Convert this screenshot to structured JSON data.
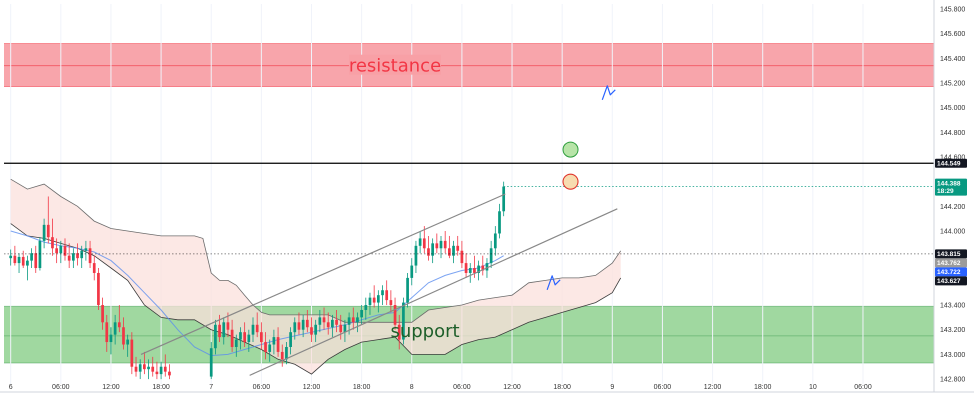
{
  "chart_data": {
    "type": "candlestick",
    "title": "",
    "yaxis": {
      "ticks": [
        "145.800",
        "145.600",
        "145.400",
        "145.200",
        "145.000",
        "144.800",
        "144.600",
        "144.400",
        "144.200",
        "144.000",
        "143.800",
        "143.600",
        "143.400",
        "143.200",
        "143.000",
        "142.800"
      ],
      "range": [
        142.76,
        145.84
      ]
    },
    "xaxis": {
      "labels": [
        {
          "t": 0,
          "text": "6"
        },
        {
          "t": 6,
          "text": "06:00"
        },
        {
          "t": 12,
          "text": "12:00"
        },
        {
          "t": 18,
          "text": "18:00"
        },
        {
          "t": 24,
          "text": "7"
        },
        {
          "t": 30,
          "text": "06:00"
        },
        {
          "t": 36,
          "text": "12:00"
        },
        {
          "t": 42,
          "text": "18:00"
        },
        {
          "t": 48,
          "text": "8"
        },
        {
          "t": 54,
          "text": "06:00"
        },
        {
          "t": 60,
          "text": "12:00"
        },
        {
          "t": 66,
          "text": "18:00"
        },
        {
          "t": 72,
          "text": "9"
        },
        {
          "t": 78,
          "text": "06:00"
        },
        {
          "t": 84,
          "text": "12:00"
        },
        {
          "t": 90,
          "text": "18:00"
        },
        {
          "t": 96,
          "text": "10"
        },
        {
          "t": 102,
          "text": "06:00"
        }
      ],
      "range": [
        -0.8,
        110.5
      ]
    },
    "zones": {
      "resistance": {
        "label": "resistance",
        "top": 145.52,
        "bottom": 145.17,
        "mid": 145.34
      },
      "support": {
        "label": "support",
        "top": 143.39,
        "bottom": 142.93,
        "mid": 143.15
      }
    },
    "levels": [
      {
        "value": 144.549,
        "tag": "144.549",
        "color": "#000000",
        "style": "solid"
      },
      {
        "value": 143.815,
        "tag": "143.815",
        "color": "#000000",
        "style": "dotted"
      }
    ],
    "price_tags": [
      {
        "value": 144.388,
        "text": "144.388",
        "sub": "18:29",
        "color": "#089981"
      },
      {
        "value": 143.762,
        "text": "143.762",
        "color": "#9b9b9b"
      },
      {
        "value": 143.722,
        "text": "143.722",
        "color": "#2962ff"
      },
      {
        "value": 143.627,
        "text": "143.627",
        "color": "#131722"
      }
    ],
    "candles": [
      [
        0.0,
        143.78,
        143.85,
        143.72,
        143.8
      ],
      [
        0.5,
        143.8,
        143.88,
        143.72,
        143.74
      ],
      [
        1.0,
        143.74,
        143.82,
        143.66,
        143.79
      ],
      [
        1.5,
        143.79,
        143.84,
        143.7,
        143.72
      ],
      [
        2.0,
        143.72,
        143.8,
        143.6,
        143.76
      ],
      [
        2.5,
        143.76,
        143.86,
        143.7,
        143.82
      ],
      [
        3.0,
        143.82,
        143.88,
        143.66,
        143.7
      ],
      [
        3.5,
        143.7,
        143.95,
        143.68,
        143.92
      ],
      [
        4.0,
        143.92,
        144.1,
        143.86,
        144.05
      ],
      [
        4.5,
        144.05,
        144.28,
        143.9,
        143.95
      ],
      [
        5.0,
        143.95,
        144.1,
        143.8,
        143.86
      ],
      [
        5.5,
        143.86,
        143.94,
        143.74,
        143.82
      ],
      [
        6.0,
        143.82,
        143.92,
        143.74,
        143.88
      ],
      [
        6.5,
        143.88,
        143.94,
        143.76,
        143.8
      ],
      [
        7.0,
        143.8,
        143.9,
        143.7,
        143.76
      ],
      [
        7.5,
        143.76,
        143.86,
        143.7,
        143.82
      ],
      [
        8.0,
        143.82,
        143.9,
        143.72,
        143.78
      ],
      [
        8.5,
        143.78,
        143.88,
        143.7,
        143.84
      ],
      [
        9.0,
        143.84,
        143.92,
        143.76,
        143.86
      ],
      [
        9.5,
        143.86,
        143.92,
        143.7,
        143.74
      ],
      [
        10.0,
        143.74,
        143.8,
        143.6,
        143.66
      ],
      [
        10.5,
        143.66,
        143.7,
        143.36,
        143.4
      ],
      [
        11.0,
        143.4,
        143.46,
        143.2,
        143.26
      ],
      [
        11.5,
        143.26,
        143.32,
        143.02,
        143.1
      ],
      [
        12.0,
        143.1,
        143.22,
        143.0,
        143.16
      ],
      [
        12.5,
        143.16,
        143.32,
        143.08,
        143.26
      ],
      [
        13.0,
        143.26,
        143.4,
        143.18,
        143.22
      ],
      [
        13.5,
        143.22,
        143.3,
        143.04,
        143.08
      ],
      [
        14.0,
        143.08,
        143.16,
        142.98,
        143.12
      ],
      [
        14.5,
        143.12,
        143.18,
        142.84,
        142.9
      ],
      [
        15.0,
        142.9,
        142.98,
        142.82,
        142.86
      ],
      [
        15.5,
        142.86,
        142.96,
        142.8,
        142.92
      ],
      [
        16.0,
        142.92,
        143.02,
        142.84,
        142.88
      ],
      [
        16.5,
        142.88,
        142.96,
        142.8,
        142.9
      ],
      [
        17.0,
        142.9,
        142.98,
        142.82,
        142.86
      ],
      [
        17.5,
        142.86,
        142.94,
        142.8,
        142.84
      ],
      [
        18.0,
        142.84,
        142.94,
        142.8,
        142.9
      ],
      [
        18.5,
        142.9,
        143.0,
        142.82,
        142.86
      ],
      [
        19.0,
        142.86,
        142.92,
        142.8,
        142.83
      ],
      [
        24.0,
        142.82,
        143.1,
        142.8,
        143.05
      ],
      [
        24.5,
        143.05,
        143.28,
        143.0,
        143.24
      ],
      [
        25.0,
        143.24,
        143.32,
        143.1,
        143.14
      ],
      [
        25.5,
        143.14,
        143.3,
        143.08,
        143.26
      ],
      [
        26.0,
        143.26,
        143.34,
        143.14,
        143.2
      ],
      [
        26.5,
        143.2,
        143.28,
        143.02,
        143.06
      ],
      [
        27.0,
        143.06,
        143.16,
        142.98,
        143.12
      ],
      [
        27.5,
        143.12,
        143.22,
        143.04,
        143.18
      ],
      [
        28.0,
        143.18,
        143.26,
        143.06,
        143.1
      ],
      [
        28.5,
        143.1,
        143.2,
        143.02,
        143.16
      ],
      [
        29.0,
        143.16,
        143.3,
        143.1,
        143.24
      ],
      [
        29.5,
        143.24,
        143.34,
        143.14,
        143.18
      ],
      [
        30.0,
        143.18,
        143.26,
        143.04,
        143.1
      ],
      [
        30.5,
        143.1,
        143.18,
        142.96,
        143.02
      ],
      [
        31.0,
        143.02,
        143.12,
        142.94,
        143.08
      ],
      [
        31.5,
        143.08,
        143.2,
        143.0,
        143.14
      ],
      [
        32.0,
        143.14,
        143.22,
        142.98,
        143.02
      ],
      [
        32.5,
        143.02,
        143.08,
        142.9,
        142.96
      ],
      [
        33.0,
        142.96,
        143.1,
        142.92,
        143.06
      ],
      [
        33.5,
        143.06,
        143.22,
        143.0,
        143.18
      ],
      [
        34.0,
        143.18,
        143.3,
        143.12,
        143.26
      ],
      [
        34.5,
        143.26,
        143.34,
        143.16,
        143.2
      ],
      [
        35.0,
        143.2,
        143.32,
        143.14,
        143.28
      ],
      [
        35.5,
        143.28,
        143.36,
        143.18,
        143.22
      ],
      [
        36.0,
        143.22,
        143.3,
        143.1,
        143.16
      ],
      [
        36.5,
        143.16,
        143.28,
        143.1,
        143.24
      ],
      [
        37.0,
        143.24,
        143.36,
        143.18,
        143.3
      ],
      [
        37.5,
        143.3,
        143.38,
        143.2,
        143.26
      ],
      [
        38.0,
        143.26,
        143.34,
        143.16,
        143.22
      ],
      [
        38.5,
        143.22,
        143.32,
        143.14,
        143.28
      ],
      [
        39.0,
        143.28,
        143.36,
        143.18,
        143.24
      ],
      [
        39.5,
        143.24,
        143.32,
        143.12,
        143.18
      ],
      [
        40.0,
        143.18,
        143.28,
        143.1,
        143.24
      ],
      [
        40.5,
        143.24,
        143.34,
        143.16,
        143.3
      ],
      [
        41.0,
        143.3,
        143.38,
        143.2,
        143.26
      ],
      [
        41.5,
        143.26,
        143.34,
        143.18,
        143.3
      ],
      [
        42.0,
        143.3,
        143.4,
        143.24,
        143.36
      ],
      [
        42.5,
        143.36,
        143.46,
        143.28,
        143.4
      ],
      [
        43.0,
        143.4,
        143.5,
        143.32,
        143.46
      ],
      [
        43.5,
        143.46,
        143.56,
        143.38,
        143.42
      ],
      [
        44.0,
        143.42,
        143.52,
        143.34,
        143.48
      ],
      [
        44.5,
        143.48,
        143.56,
        143.4,
        143.52
      ],
      [
        45.0,
        143.52,
        143.6,
        143.4,
        143.44
      ],
      [
        45.5,
        143.44,
        143.52,
        143.34,
        143.4
      ],
      [
        46.0,
        143.4,
        143.46,
        143.2,
        143.24
      ],
      [
        46.5,
        143.24,
        143.32,
        143.04,
        143.12
      ],
      [
        47.0,
        143.12,
        143.46,
        143.08,
        143.42
      ],
      [
        47.5,
        143.42,
        143.66,
        143.38,
        143.62
      ],
      [
        48.0,
        143.62,
        143.78,
        143.56,
        143.72
      ],
      [
        48.5,
        143.72,
        143.92,
        143.66,
        143.88
      ],
      [
        49.0,
        143.88,
        144.0,
        143.82,
        143.94
      ],
      [
        49.5,
        143.94,
        144.04,
        143.82,
        143.86
      ],
      [
        50.0,
        143.86,
        143.96,
        143.76,
        143.8
      ],
      [
        50.5,
        143.8,
        143.94,
        143.74,
        143.9
      ],
      [
        51.0,
        143.9,
        143.98,
        143.82,
        143.86
      ],
      [
        51.5,
        143.86,
        143.96,
        143.78,
        143.92
      ],
      [
        52.0,
        143.92,
        144.0,
        143.82,
        143.86
      ],
      [
        52.5,
        143.86,
        143.96,
        143.78,
        143.8
      ],
      [
        53.0,
        143.8,
        143.92,
        143.74,
        143.88
      ],
      [
        53.5,
        143.88,
        143.96,
        143.8,
        143.84
      ],
      [
        54.0,
        143.84,
        143.92,
        143.7,
        143.74
      ],
      [
        54.5,
        143.74,
        143.82,
        143.62,
        143.66
      ],
      [
        55.0,
        143.66,
        143.74,
        143.58,
        143.7
      ],
      [
        55.5,
        143.7,
        143.8,
        143.62,
        143.66
      ],
      [
        56.0,
        143.66,
        143.76,
        143.6,
        143.72
      ],
      [
        56.5,
        143.72,
        143.8,
        143.64,
        143.68
      ],
      [
        57.0,
        143.68,
        143.78,
        143.62,
        143.74
      ],
      [
        57.5,
        143.74,
        143.92,
        143.7,
        143.86
      ],
      [
        58.0,
        143.86,
        144.04,
        143.8,
        143.98
      ],
      [
        58.5,
        143.98,
        144.22,
        143.94,
        144.16
      ],
      [
        59.0,
        144.16,
        144.4,
        144.12,
        144.36
      ]
    ],
    "ma_line": [
      [
        0,
        144.0
      ],
      [
        2,
        143.96
      ],
      [
        4,
        143.91
      ],
      [
        6,
        143.88
      ],
      [
        8,
        143.86
      ],
      [
        10,
        143.83
      ],
      [
        12,
        143.76
      ],
      [
        14,
        143.64
      ],
      [
        16,
        143.5
      ],
      [
        18,
        143.36
      ],
      [
        20,
        143.2
      ],
      [
        22,
        143.06
      ],
      [
        24,
        142.99
      ],
      [
        26,
        143.0
      ],
      [
        28,
        143.04
      ],
      [
        30,
        143.08
      ],
      [
        32,
        143.12
      ],
      [
        34,
        143.15
      ],
      [
        36,
        143.18
      ],
      [
        38,
        143.21
      ],
      [
        40,
        143.24
      ],
      [
        42,
        143.28
      ],
      [
        44,
        143.32
      ],
      [
        46,
        143.34
      ],
      [
        48,
        143.46
      ],
      [
        50,
        143.58
      ],
      [
        52,
        143.64
      ],
      [
        54,
        143.68
      ],
      [
        56,
        143.7
      ],
      [
        58,
        143.76
      ],
      [
        59,
        143.8
      ]
    ],
    "cloud": {
      "upper": [
        [
          0,
          144.42
        ],
        [
          2,
          144.34
        ],
        [
          4,
          144.38
        ],
        [
          6,
          144.28
        ],
        [
          8,
          144.2
        ],
        [
          10,
          144.08
        ],
        [
          12,
          144.02
        ],
        [
          14,
          144.0
        ],
        [
          16,
          143.98
        ],
        [
          18,
          143.96
        ],
        [
          20,
          143.96
        ],
        [
          22,
          143.96
        ],
        [
          23,
          143.94
        ],
        [
          24,
          143.66
        ],
        [
          25,
          143.6
        ],
        [
          26,
          143.6
        ],
        [
          27,
          143.56
        ],
        [
          28,
          143.48
        ],
        [
          29,
          143.4
        ],
        [
          30,
          143.34
        ],
        [
          31,
          143.32
        ],
        [
          32,
          143.32
        ],
        [
          34,
          143.32
        ],
        [
          36,
          143.32
        ],
        [
          38,
          143.32
        ],
        [
          40,
          143.26
        ],
        [
          42,
          143.26
        ],
        [
          44,
          143.26
        ],
        [
          46,
          143.26
        ],
        [
          48,
          143.26
        ],
        [
          50,
          143.36
        ],
        [
          52,
          143.38
        ],
        [
          54,
          143.4
        ],
        [
          56,
          143.44
        ],
        [
          58,
          143.46
        ],
        [
          60,
          143.48
        ],
        [
          62,
          143.58
        ],
        [
          64,
          143.6
        ],
        [
          66,
          143.62
        ],
        [
          68,
          143.62
        ],
        [
          70,
          143.64
        ],
        [
          72,
          143.74
        ],
        [
          73,
          143.84
        ]
      ],
      "lower": [
        [
          0,
          144.06
        ],
        [
          2,
          143.96
        ],
        [
          4,
          143.94
        ],
        [
          6,
          143.9
        ],
        [
          8,
          143.86
        ],
        [
          10,
          143.8
        ],
        [
          12,
          143.7
        ],
        [
          14,
          143.6
        ],
        [
          16,
          143.4
        ],
        [
          18,
          143.3
        ],
        [
          20,
          143.28
        ],
        [
          22,
          143.28
        ],
        [
          24,
          143.2
        ],
        [
          26,
          143.16
        ],
        [
          28,
          143.1
        ],
        [
          30,
          143.04
        ],
        [
          32,
          142.96
        ],
        [
          34,
          142.92
        ],
        [
          36,
          142.84
        ],
        [
          38,
          142.96
        ],
        [
          40,
          143.04
        ],
        [
          42,
          143.1
        ],
        [
          44,
          143.12
        ],
        [
          46,
          143.14
        ],
        [
          48,
          143.0
        ],
        [
          50,
          143.0
        ],
        [
          52,
          143.0
        ],
        [
          54,
          143.08
        ],
        [
          56,
          143.12
        ],
        [
          58,
          143.14
        ],
        [
          60,
          143.2
        ],
        [
          62,
          143.26
        ],
        [
          64,
          143.3
        ],
        [
          66,
          143.34
        ],
        [
          68,
          143.38
        ],
        [
          70,
          143.42
        ],
        [
          72,
          143.5
        ],
        [
          73,
          143.62
        ]
      ]
    },
    "channel": {
      "upper": [
        [
          15.6,
          143.0
        ],
        [
          59.2,
          144.3
        ]
      ],
      "lower": [
        [
          28.6,
          142.83
        ],
        [
          72.6,
          144.18
        ]
      ]
    },
    "markers": {
      "green_circle": {
        "t": 67.0,
        "value": 144.66
      },
      "red_circle": {
        "t": 67.0,
        "value": 144.4
      },
      "arrow_resistance": {
        "t": 71.4,
        "value": 145.12
      },
      "arrow_support": {
        "t": 64.8,
        "value": 143.58
      }
    },
    "colors": {
      "bull": "#089981",
      "bear": "#f23645",
      "resistance_fill": "#f8a0a6",
      "resistance_line": "#f23645",
      "support_fill": "#8fd18f",
      "support_line": "#1e8c3a",
      "cloud_fill": "#fbe0dc",
      "cloud_fill_green": "#e6f2e3",
      "ma_line": "#5b8def",
      "channel": "#888888",
      "arrow": "#2962ff"
    }
  }
}
